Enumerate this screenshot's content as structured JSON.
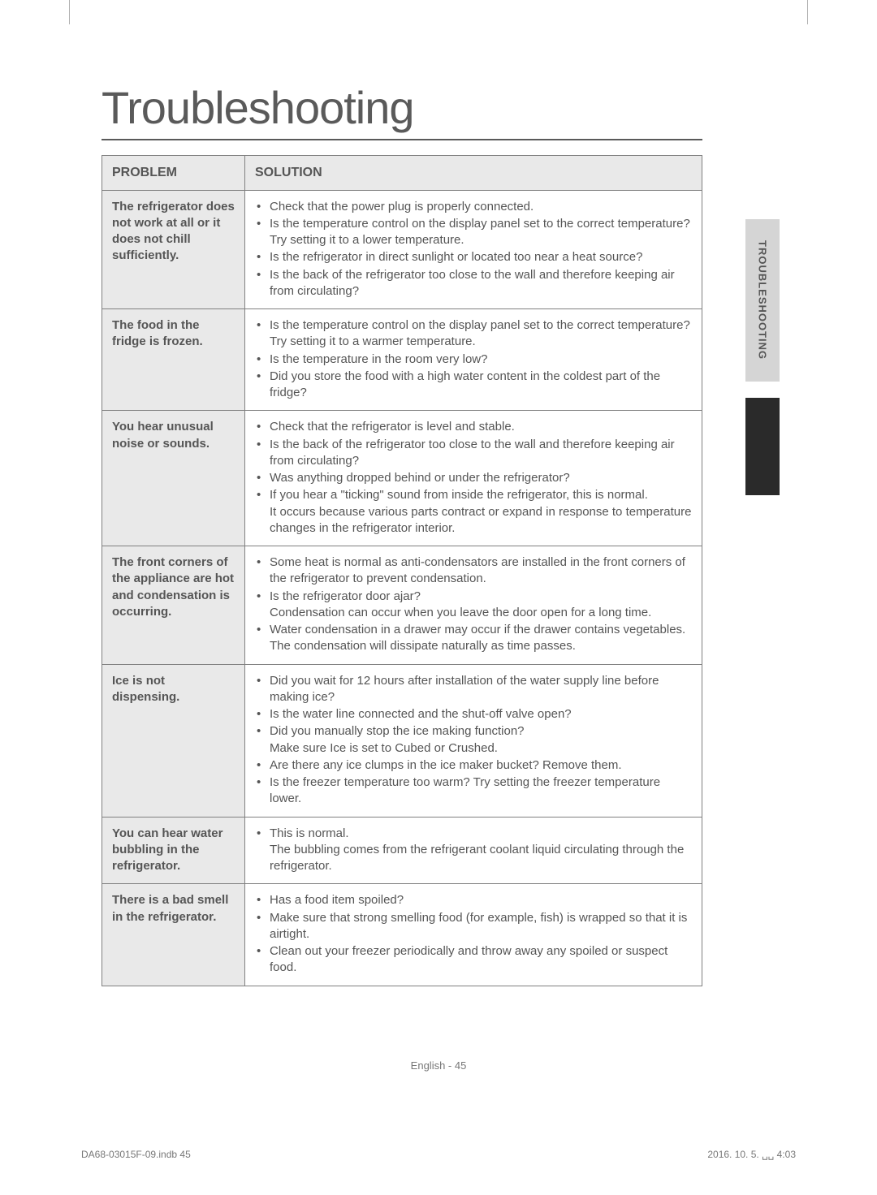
{
  "title": "Troubleshooting",
  "headers": {
    "problem": "PROBLEM",
    "solution": "SOLUTION"
  },
  "rows": [
    {
      "problem": "The refrigerator does not work at all or it does not chill sufficiently.",
      "items": [
        {
          "text": "Check that the power plug is properly connected."
        },
        {
          "text": "Is the temperature control on the display panel set to the correct temperature?",
          "sub": "Try setting it to a lower temperature."
        },
        {
          "text": "Is the refrigerator in direct sunlight or located too near a heat source?"
        },
        {
          "text": "Is the back of the refrigerator too close to the wall and therefore keeping air from circulating?"
        }
      ]
    },
    {
      "problem": "The food in the fridge is frozen.",
      "items": [
        {
          "text": "Is the temperature control on the display panel set to the correct temperature?",
          "sub": "Try setting it to a warmer temperature."
        },
        {
          "text": "Is the temperature in the room very low?"
        },
        {
          "text": "Did you store the food with a high water content in the coldest part of the fridge?"
        }
      ]
    },
    {
      "problem": "You hear unusual noise or sounds.",
      "items": [
        {
          "text": "Check that the refrigerator is level and stable."
        },
        {
          "text": "Is the back of the refrigerator too close to the wall and therefore keeping air from circulating?"
        },
        {
          "text": "Was anything dropped behind or under the refrigerator?"
        },
        {
          "text": "If you hear a \"ticking\" sound from inside the refrigerator, this is normal.",
          "sub": "It occurs because various parts contract or expand in response to temperature changes in the refrigerator interior."
        }
      ]
    },
    {
      "problem": "The front corners of the appliance are hot and condensation is occurring.",
      "items": [
        {
          "text": "Some heat is normal as anti-condensators are installed in the front corners of the refrigerator to prevent condensation."
        },
        {
          "text": "Is the refrigerator door ajar?",
          "sub": "Condensation can occur when you leave the door open for a long time."
        },
        {
          "text": "Water condensation in a drawer may occur if the drawer contains vegetables.",
          "sub": "The condensation will dissipate naturally as time passes."
        }
      ]
    },
    {
      "problem": "Ice is not dispensing.",
      "items": [
        {
          "text": "Did you wait for 12 hours after installation of the water supply line before making ice?"
        },
        {
          "text": "Is the water line connected and the shut-off valve open?"
        },
        {
          "text": "Did you manually stop the ice making function?",
          "sub": "Make sure Ice is set to Cubed or Crushed."
        },
        {
          "text": "Are there any ice clumps in the ice maker bucket? Remove them."
        },
        {
          "text": "Is the freezer temperature too warm? Try setting the freezer temperature lower."
        }
      ]
    },
    {
      "problem": "You can hear water bubbling in the refrigerator.",
      "items": [
        {
          "text": "This is normal.",
          "sub": "The bubbling comes from the refrigerant coolant liquid circulating through the refrigerator."
        }
      ]
    },
    {
      "problem": "There is a bad smell in the refrigerator.",
      "items": [
        {
          "text": "Has a food item spoiled?"
        },
        {
          "text": "Make sure that strong smelling food (for example, fish) is wrapped so that it is airtight."
        },
        {
          "text": "Clean out your freezer periodically and throw away any spoiled or suspect food."
        }
      ]
    }
  ],
  "sideTab": "TROUBLESHOOTING",
  "footer": {
    "center": "English - 45",
    "left": "DA68-03015F-09.indb   45",
    "right": "2016. 10. 5.   ␣␣ 4:03"
  }
}
